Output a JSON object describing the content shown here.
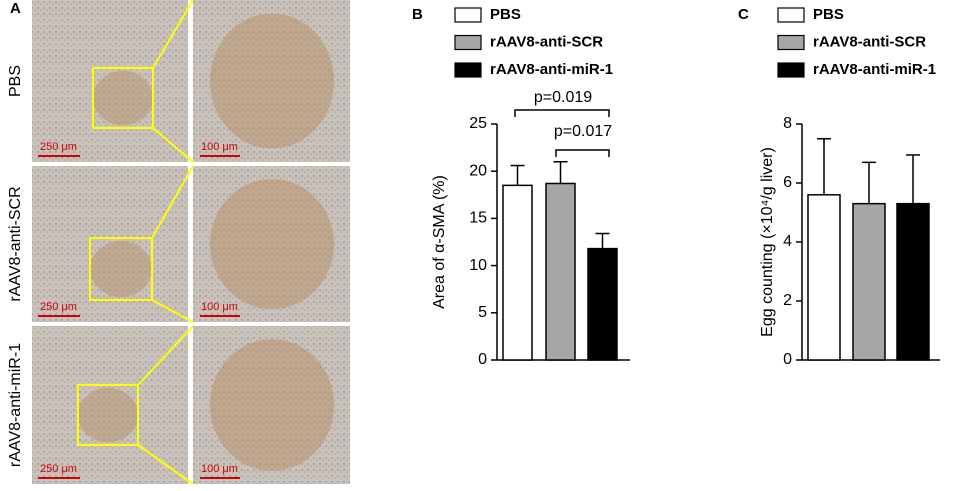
{
  "panel_a": {
    "label": "A",
    "rows": [
      "PBS",
      "rAAV8-anti-SCR",
      "rAAV8-anti-miR-1"
    ],
    "scale_left": [
      "250 μm",
      "250 μm",
      "250 μm"
    ],
    "scale_right": [
      "100 μm",
      "100 μm",
      "100 μm"
    ]
  },
  "chart_data": [
    {
      "type": "bar",
      "panel": "B",
      "ylabel": "Area of α-SMA (%)",
      "categories": [
        null
      ],
      "series": [
        {
          "name": "PBS",
          "color": "#ffffff",
          "values": [
            18.5
          ],
          "errors": [
            2.1
          ]
        },
        {
          "name": "rAAV8-anti-SCR",
          "color": "#a6a6a6",
          "values": [
            18.7
          ],
          "errors": [
            2.3
          ]
        },
        {
          "name": "rAAV8-anti-miR-1",
          "color": "#000000",
          "values": [
            11.8
          ],
          "errors": [
            1.6
          ]
        }
      ],
      "annotations": [
        "p=0.019",
        "p=0.017"
      ],
      "ylim": [
        0,
        25
      ],
      "yticks": [
        0,
        5,
        10,
        15,
        20,
        25
      ]
    },
    {
      "type": "bar",
      "panel": "C",
      "ylabel": "Egg counting (×10⁴/g liver)",
      "categories": [
        null
      ],
      "series": [
        {
          "name": "PBS",
          "color": "#ffffff",
          "values": [
            5.6
          ],
          "errors": [
            1.9
          ]
        },
        {
          "name": "rAAV8-anti-SCR",
          "color": "#a6a6a6",
          "values": [
            5.3
          ],
          "errors": [
            1.4
          ]
        },
        {
          "name": "rAAV8-anti-miR-1",
          "color": "#000000",
          "values": [
            5.3
          ],
          "errors": [
            1.65
          ]
        }
      ],
      "ylim": [
        0,
        8
      ],
      "yticks": [
        0,
        2,
        4,
        6,
        8
      ]
    }
  ]
}
